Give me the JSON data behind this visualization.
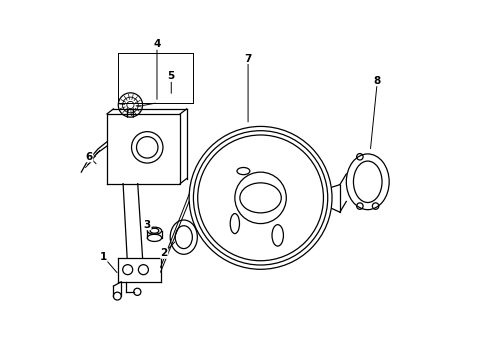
{
  "background_color": "#ffffff",
  "line_color": "#000000",
  "label_color": "#000000",
  "figsize": [
    4.89,
    3.6
  ],
  "dpi": 100
}
